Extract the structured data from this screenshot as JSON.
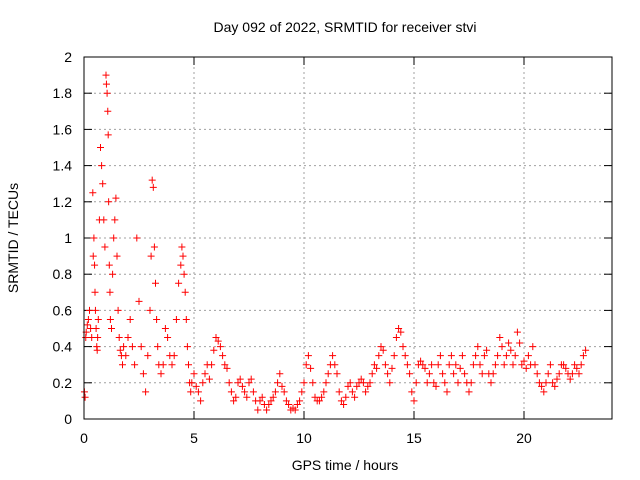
{
  "chart_data": {
    "type": "scatter",
    "title": "Day 092 of 2022, SRMTID for receiver stvi",
    "xlabel": "GPS time / hours",
    "ylabel": "SRMTID / TECUs",
    "xlim": [
      0,
      24
    ],
    "ylim": [
      0,
      2
    ],
    "xticks": [
      0,
      5,
      10,
      15,
      20
    ],
    "yticks": [
      0,
      0.2,
      0.4,
      0.6,
      0.8,
      1,
      1.2,
      1.4,
      1.6,
      1.8,
      2
    ],
    "ytick_labels": [
      "0",
      "0.2",
      "0.4",
      "0.6",
      "0.8",
      "1",
      "1.2",
      "1.4",
      "1.6",
      "1.8",
      "2"
    ],
    "xtick_labels": [
      "0",
      "5",
      "10",
      "15",
      "20"
    ],
    "grid": true,
    "marker": "+",
    "series": [
      {
        "name": "SRMTID",
        "color": "#ff0000",
        "x": [
          0.02,
          0.05,
          0.08,
          0.1,
          0.15,
          0.2,
          0.25,
          0.3,
          0.35,
          0.4,
          0.42,
          0.45,
          0.48,
          0.5,
          0.52,
          0.55,
          0.58,
          0.6,
          0.62,
          0.65,
          0.7,
          0.75,
          0.8,
          0.85,
          0.9,
          0.95,
          1.0,
          1.02,
          1.05,
          1.08,
          1.1,
          1.12,
          1.15,
          1.18,
          1.2,
          1.25,
          1.3,
          1.35,
          1.4,
          1.45,
          1.5,
          1.55,
          1.6,
          1.65,
          1.7,
          1.75,
          1.8,
          1.9,
          2.0,
          2.1,
          2.2,
          2.3,
          2.4,
          2.5,
          2.6,
          2.7,
          2.8,
          2.9,
          3.0,
          3.05,
          3.1,
          3.15,
          3.2,
          3.25,
          3.3,
          3.35,
          3.4,
          3.5,
          3.6,
          3.7,
          3.8,
          3.9,
          4.0,
          4.1,
          4.2,
          4.3,
          4.4,
          4.45,
          4.5,
          4.55,
          4.6,
          4.65,
          4.7,
          4.75,
          4.8,
          4.85,
          4.9,
          5.0,
          5.1,
          5.2,
          5.3,
          5.4,
          5.5,
          5.6,
          5.7,
          5.8,
          5.9,
          6.0,
          6.1,
          6.2,
          6.3,
          6.4,
          6.5,
          6.6,
          6.7,
          6.8,
          6.9,
          7.0,
          7.1,
          7.2,
          7.3,
          7.4,
          7.5,
          7.6,
          7.7,
          7.8,
          7.9,
          8.0,
          8.1,
          8.2,
          8.3,
          8.4,
          8.5,
          8.6,
          8.7,
          8.8,
          8.9,
          9.0,
          9.1,
          9.2,
          9.3,
          9.4,
          9.5,
          9.6,
          9.7,
          9.8,
          9.9,
          10.0,
          10.1,
          10.2,
          10.3,
          10.4,
          10.5,
          10.6,
          10.7,
          10.8,
          10.9,
          11.0,
          11.1,
          11.2,
          11.3,
          11.4,
          11.5,
          11.6,
          11.7,
          11.8,
          11.9,
          12.0,
          12.1,
          12.2,
          12.3,
          12.4,
          12.5,
          12.6,
          12.7,
          12.8,
          12.9,
          13.0,
          13.1,
          13.2,
          13.3,
          13.4,
          13.5,
          13.6,
          13.7,
          13.8,
          13.9,
          14.0,
          14.1,
          14.2,
          14.3,
          14.4,
          14.5,
          14.6,
          14.7,
          14.8,
          14.9,
          15.0,
          15.1,
          15.2,
          15.3,
          15.4,
          15.5,
          15.6,
          15.7,
          15.8,
          15.9,
          16.0,
          16.1,
          16.2,
          16.3,
          16.4,
          16.5,
          16.6,
          16.7,
          16.8,
          16.9,
          17.0,
          17.1,
          17.2,
          17.3,
          17.4,
          17.5,
          17.6,
          17.7,
          17.8,
          17.9,
          18.0,
          18.1,
          18.2,
          18.3,
          18.4,
          18.5,
          18.6,
          18.7,
          18.8,
          18.9,
          19.0,
          19.1,
          19.2,
          19.3,
          19.4,
          19.5,
          19.6,
          19.7,
          19.8,
          19.9,
          20.0,
          20.1,
          20.2,
          20.3,
          20.4,
          20.5,
          20.6,
          20.7,
          20.8,
          20.9,
          21.0,
          21.1,
          21.2,
          21.3,
          21.4,
          21.5,
          21.6,
          21.7,
          21.8,
          21.9,
          22.0,
          22.1,
          22.2,
          22.3,
          22.4,
          22.5,
          22.6,
          22.7,
          22.8
        ],
        "y": [
          0.15,
          0.12,
          0.45,
          0.48,
          0.52,
          0.55,
          0.6,
          0.5,
          0.45,
          1.25,
          0.9,
          1.0,
          0.85,
          0.7,
          0.6,
          0.5,
          0.4,
          0.38,
          0.45,
          0.55,
          1.1,
          1.5,
          1.4,
          1.3,
          1.1,
          0.95,
          1.9,
          1.85,
          1.8,
          1.7,
          1.57,
          1.2,
          0.85,
          0.7,
          0.55,
          0.5,
          0.8,
          1.0,
          1.1,
          1.22,
          0.9,
          0.6,
          0.45,
          0.38,
          0.35,
          0.3,
          0.4,
          0.35,
          0.45,
          0.55,
          0.4,
          0.3,
          1.0,
          0.65,
          0.4,
          0.25,
          0.15,
          0.35,
          0.6,
          0.9,
          1.32,
          1.28,
          0.95,
          0.75,
          0.55,
          0.4,
          0.3,
          0.25,
          0.3,
          0.5,
          0.45,
          0.35,
          0.3,
          0.35,
          0.55,
          0.75,
          0.85,
          0.95,
          0.9,
          0.8,
          0.7,
          0.55,
          0.4,
          0.3,
          0.2,
          0.15,
          0.2,
          0.25,
          0.18,
          0.15,
          0.1,
          0.2,
          0.25,
          0.3,
          0.22,
          0.3,
          0.38,
          0.45,
          0.43,
          0.4,
          0.35,
          0.3,
          0.28,
          0.2,
          0.15,
          0.1,
          0.12,
          0.2,
          0.22,
          0.18,
          0.15,
          0.12,
          0.2,
          0.22,
          0.15,
          0.1,
          0.05,
          0.1,
          0.12,
          0.08,
          0.05,
          0.08,
          0.1,
          0.12,
          0.15,
          0.2,
          0.25,
          0.18,
          0.15,
          0.1,
          0.08,
          0.05,
          0.06,
          0.05,
          0.08,
          0.1,
          0.15,
          0.2,
          0.3,
          0.35,
          0.28,
          0.2,
          0.12,
          0.1,
          0.1,
          0.12,
          0.15,
          0.2,
          0.25,
          0.3,
          0.35,
          0.3,
          0.25,
          0.15,
          0.1,
          0.08,
          0.12,
          0.18,
          0.2,
          0.15,
          0.12,
          0.18,
          0.2,
          0.22,
          0.2,
          0.15,
          0.18,
          0.2,
          0.25,
          0.3,
          0.28,
          0.35,
          0.4,
          0.38,
          0.3,
          0.25,
          0.2,
          0.28,
          0.35,
          0.45,
          0.5,
          0.48,
          0.4,
          0.35,
          0.3,
          0.25,
          0.15,
          0.1,
          0.2,
          0.3,
          0.32,
          0.3,
          0.28,
          0.2,
          0.25,
          0.3,
          0.2,
          0.18,
          0.3,
          0.35,
          0.25,
          0.2,
          0.15,
          0.3,
          0.35,
          0.25,
          0.3,
          0.2,
          0.28,
          0.35,
          0.25,
          0.2,
          0.15,
          0.2,
          0.3,
          0.35,
          0.4,
          0.3,
          0.25,
          0.35,
          0.38,
          0.25,
          0.2,
          0.25,
          0.3,
          0.35,
          0.45,
          0.4,
          0.3,
          0.35,
          0.42,
          0.38,
          0.3,
          0.35,
          0.48,
          0.42,
          0.3,
          0.32,
          0.28,
          0.35,
          0.3,
          0.4,
          0.3,
          0.25,
          0.2,
          0.18,
          0.15,
          0.2,
          0.25,
          0.3,
          0.2,
          0.18,
          0.22,
          0.25,
          0.3,
          0.3,
          0.28,
          0.25,
          0.22,
          0.25,
          0.3,
          0.28,
          0.25,
          0.3,
          0.35,
          0.38
        ]
      }
    ]
  }
}
